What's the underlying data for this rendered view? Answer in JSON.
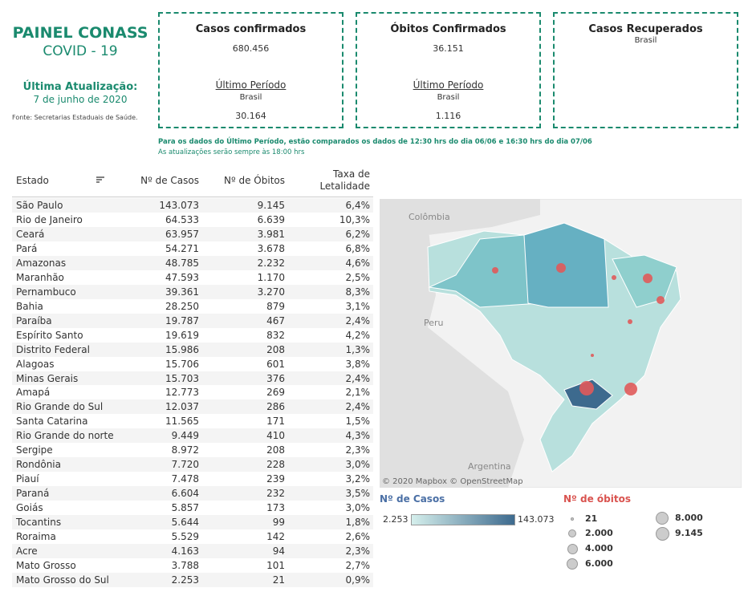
{
  "header": {
    "title": "PAINEL CONASS",
    "subtitle": "COVID - 19",
    "update_label": "Última Atualização:",
    "update_date": "7 de junho de 2020",
    "source": "Fonte: Secretarias Estaduais de Saúde."
  },
  "kpis": [
    {
      "title": "Casos confirmados",
      "value": "680.456",
      "period_label": "Último Período",
      "period_region": "Brasil",
      "period_value": "30.164"
    },
    {
      "title": "Óbitos Confirmados",
      "value": "36.151",
      "period_label": "Último Período",
      "period_region": "Brasil",
      "period_value": "1.116"
    },
    {
      "title": "Casos Recuperados",
      "region": "Brasil"
    }
  ],
  "notes": [
    "Para os dados do Último Período, estão comparados os dados de 12:30 hrs do dia 06/06 e 16:30 hrs do dia 07/06",
    "As atualizações serão sempre às 18:00 hrs"
  ],
  "table": {
    "columns": [
      "Estado",
      "Nº de Casos",
      "Nº de Óbitos",
      "Taxa de Letalidade"
    ],
    "rows": [
      [
        "São Paulo",
        "143.073",
        "9.145",
        "6,4%"
      ],
      [
        "Rio de Janeiro",
        "64.533",
        "6.639",
        "10,3%"
      ],
      [
        "Ceará",
        "63.957",
        "3.981",
        "6,2%"
      ],
      [
        "Pará",
        "54.271",
        "3.678",
        "6,8%"
      ],
      [
        "Amazonas",
        "48.785",
        "2.232",
        "4,6%"
      ],
      [
        "Maranhão",
        "47.593",
        "1.170",
        "2,5%"
      ],
      [
        "Pernambuco",
        "39.361",
        "3.270",
        "8,3%"
      ],
      [
        "Bahia",
        "28.250",
        "879",
        "3,1%"
      ],
      [
        "Paraíba",
        "19.787",
        "467",
        "2,4%"
      ],
      [
        "Espírito Santo",
        "19.619",
        "832",
        "4,2%"
      ],
      [
        "Distrito Federal",
        "15.986",
        "208",
        "1,3%"
      ],
      [
        "Alagoas",
        "15.706",
        "601",
        "3,8%"
      ],
      [
        "Minas Gerais",
        "15.703",
        "376",
        "2,4%"
      ],
      [
        "Amapá",
        "12.773",
        "269",
        "2,1%"
      ],
      [
        "Rio Grande do Sul",
        "12.037",
        "286",
        "2,4%"
      ],
      [
        "Santa Catarina",
        "11.565",
        "171",
        "1,5%"
      ],
      [
        "Rio Grande do norte",
        "9.449",
        "410",
        "4,3%"
      ],
      [
        "Sergipe",
        "8.972",
        "208",
        "2,3%"
      ],
      [
        "Rondônia",
        "7.720",
        "228",
        "3,0%"
      ],
      [
        "Piauí",
        "7.478",
        "239",
        "3,2%"
      ],
      [
        "Paraná",
        "6.604",
        "232",
        "3,5%"
      ],
      [
        "Goiás",
        "5.857",
        "173",
        "3,0%"
      ],
      [
        "Tocantins",
        "5.644",
        "99",
        "1,8%"
      ],
      [
        "Roraima",
        "5.529",
        "142",
        "2,6%"
      ],
      [
        "Acre",
        "4.163",
        "94",
        "2,3%"
      ],
      [
        "Mato Grosso",
        "3.788",
        "101",
        "2,7%"
      ],
      [
        "Mato Grosso do Sul",
        "2.253",
        "21",
        "0,9%"
      ]
    ]
  },
  "map": {
    "labels": [
      "Colômbia",
      "Peru",
      "Argentina"
    ],
    "attribution": "© 2020 Mapbox © OpenStreetMap"
  },
  "legend": {
    "cases_title": "Nº de Casos",
    "cases_min": "2.253",
    "cases_max": "143.073",
    "deaths_title": "Nº de óbitos",
    "deaths_sizes": [
      "21",
      "2.000",
      "4.000",
      "6.000",
      "8.000",
      "9.145"
    ]
  }
}
